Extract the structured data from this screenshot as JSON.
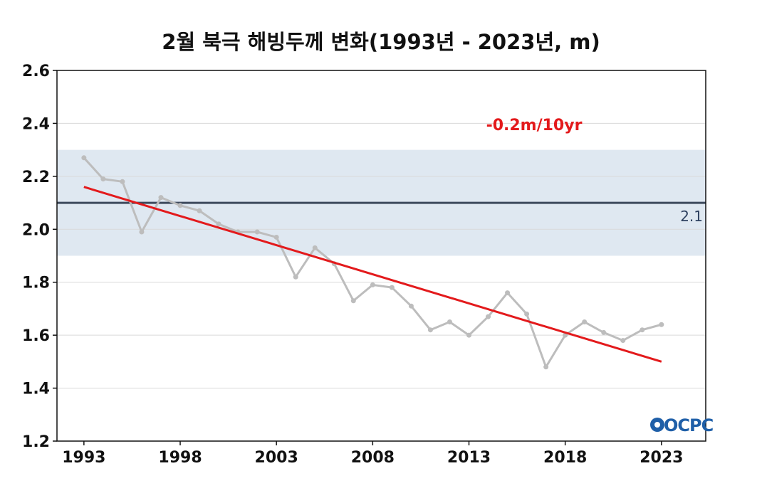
{
  "chart_data": {
    "type": "line",
    "title": "2월 북극 해빙두께 변화(1993년 - 2023년, m)",
    "xlabel": "",
    "ylabel": "",
    "xlim": [
      1991.6,
      2025.3
    ],
    "ylim": [
      1.2,
      2.6
    ],
    "yticks": [
      1.2,
      1.4,
      1.6,
      1.8,
      2.0,
      2.2,
      2.4,
      2.6
    ],
    "ytick_labels": [
      "1.2",
      "1.4",
      "1.6",
      "1.8",
      "2.0",
      "2.2",
      "2.4",
      "2.6"
    ],
    "xticks": [
      1993,
      1998,
      2003,
      2008,
      2013,
      2018,
      2023
    ],
    "xtick_labels": [
      "1993",
      "1998",
      "2003",
      "2008",
      "2013",
      "2018",
      "2023"
    ],
    "grid": true,
    "legend": "none",
    "x": [
      1993,
      1994,
      1995,
      1996,
      1997,
      1998,
      1999,
      2000,
      2001,
      2002,
      2003,
      2004,
      2005,
      2006,
      2007,
      2008,
      2009,
      2010,
      2011,
      2012,
      2013,
      2014,
      2015,
      2016,
      2017,
      2018,
      2019,
      2020,
      2021,
      2022,
      2023
    ],
    "series": [
      {
        "values": [
          2.27,
          2.19,
          2.18,
          1.99,
          2.12,
          2.09,
          2.07,
          2.02,
          1.99,
          1.99,
          1.97,
          1.82,
          1.93,
          1.87,
          1.73,
          1.79,
          1.78,
          1.71,
          1.62,
          1.65,
          1.6,
          1.67,
          1.76,
          1.68,
          1.48,
          1.6,
          1.65,
          1.61,
          1.58,
          1.62,
          1.64
        ],
        "color": "#bdbdbd"
      }
    ],
    "trend": {
      "label": "-0.2m/10yr",
      "start": [
        1993,
        2.16
      ],
      "end": [
        2023,
        1.5
      ],
      "color": "#e31a1c"
    },
    "reference_line": {
      "value": 2.1,
      "label": "2.1",
      "color": "#3d4a5c"
    },
    "reference_band": {
      "low": 1.9,
      "high": 2.3,
      "color": "#dfe8f1"
    }
  },
  "logo": {
    "text": "OCPC",
    "colors": [
      "#1f5fa8",
      "#2b9fd4"
    ]
  }
}
